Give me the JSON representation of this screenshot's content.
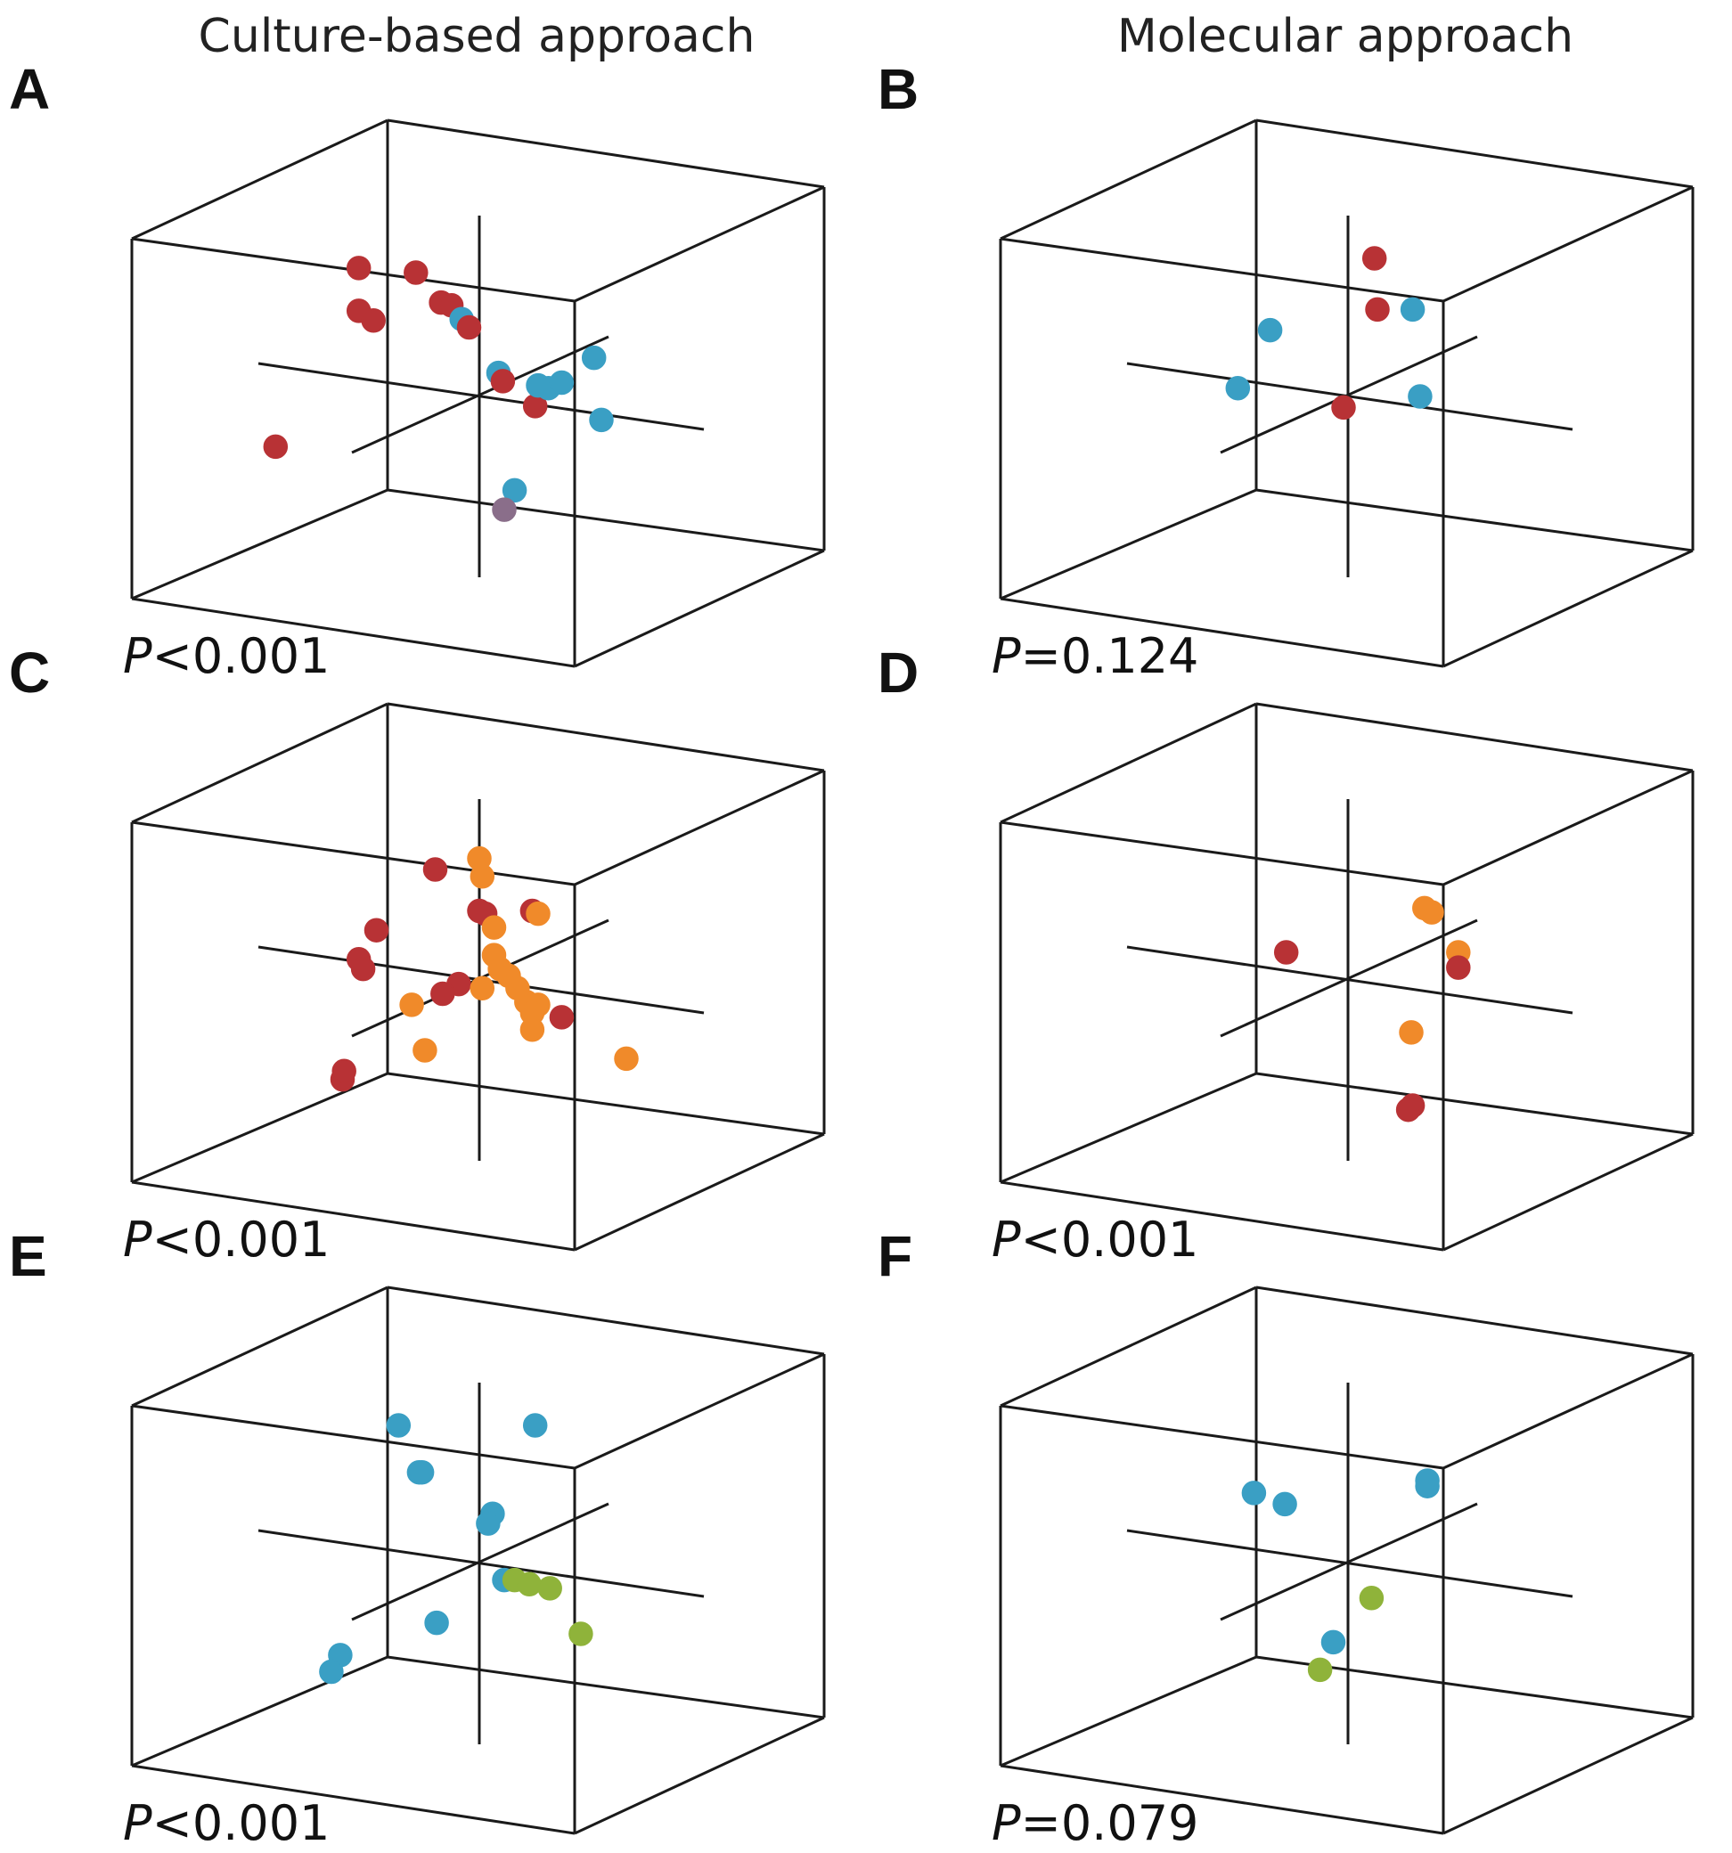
{
  "columns": [
    {
      "title": "Culture-based approach"
    },
    {
      "title": "Molecular approach"
    }
  ],
  "colors": {
    "red": "#b83235",
    "teal": "#3a9fc4",
    "orange": "#f08a2a",
    "green": "#8fb33a",
    "purple": "#8a6e8a"
  },
  "chart_data": [
    {
      "panel": "A",
      "type": "scatter",
      "p_label": "P",
      "p_rest": "<0.001",
      "points": [
        {
          "x": -0.82,
          "y": 0.93,
          "z": 0.0,
          "c": "red"
        },
        {
          "x": -0.65,
          "y": 1.0,
          "z": 0.4,
          "c": "red"
        },
        {
          "x": -0.82,
          "y": 0.62,
          "z": 0.0,
          "c": "red"
        },
        {
          "x": -0.72,
          "y": 0.55,
          "z": 0.0,
          "c": "red"
        },
        {
          "x": -0.26,
          "y": 0.68,
          "z": 0.0,
          "c": "red"
        },
        {
          "x": -0.19,
          "y": 0.66,
          "z": 0.0,
          "c": "red"
        },
        {
          "x": -0.12,
          "y": 0.56,
          "z": 0.0,
          "c": "teal"
        },
        {
          "x": -0.07,
          "y": 0.5,
          "z": 0.0,
          "c": "red"
        },
        {
          "x": 0.13,
          "y": 0.17,
          "z": 0.0,
          "c": "teal"
        },
        {
          "x": 0.16,
          "y": 0.11,
          "z": 0.0,
          "c": "red"
        },
        {
          "x": 0.38,
          "y": -0.07,
          "z": 0.0,
          "c": "red"
        },
        {
          "x": 0.4,
          "y": 0.08,
          "z": 0.0,
          "c": "teal"
        },
        {
          "x": 0.47,
          "y": 0.06,
          "z": 0.0,
          "c": "teal"
        },
        {
          "x": 0.56,
          "y": 0.1,
          "z": 0.0,
          "c": "teal"
        },
        {
          "x": 0.78,
          "y": 0.28,
          "z": 0.0,
          "c": "teal"
        },
        {
          "x": 0.83,
          "y": -0.17,
          "z": 0.0,
          "c": "teal"
        },
        {
          "x": 0.24,
          "y": -0.68,
          "z": 0.0,
          "c": "teal"
        },
        {
          "x": 0.17,
          "y": -0.82,
          "z": 0.0,
          "c": "purple"
        },
        {
          "x": -0.95,
          "y": -0.57,
          "z": -0.8,
          "c": "red"
        }
      ]
    },
    {
      "panel": "B",
      "type": "scatter",
      "p_label": "P",
      "p_rest": "=0.124",
      "points": [
        {
          "x": 0.18,
          "y": 1.0,
          "z": 0.0,
          "c": "red"
        },
        {
          "x": 0.2,
          "y": 0.63,
          "z": 0.0,
          "c": "red"
        },
        {
          "x": 0.44,
          "y": 0.63,
          "z": 0.0,
          "c": "teal"
        },
        {
          "x": -0.53,
          "y": 0.48,
          "z": 0.0,
          "c": "teal"
        },
        {
          "x": -0.75,
          "y": 0.06,
          "z": 0.0,
          "c": "teal"
        },
        {
          "x": 0.49,
          "y": 0.0,
          "z": 0.0,
          "c": "teal"
        },
        {
          "x": -0.03,
          "y": -0.08,
          "z": 0.0,
          "c": "red"
        }
      ]
    },
    {
      "panel": "C",
      "type": "scatter",
      "p_label": "P",
      "p_rest": "<0.001",
      "points": [
        {
          "x": -0.3,
          "y": 0.8,
          "z": 0.0,
          "c": "red"
        },
        {
          "x": 0.0,
          "y": 0.88,
          "z": 0.0,
          "c": "orange"
        },
        {
          "x": 0.02,
          "y": 0.75,
          "z": 0.0,
          "c": "orange"
        },
        {
          "x": 0.0,
          "y": 0.5,
          "z": 0.0,
          "c": "red"
        },
        {
          "x": 0.04,
          "y": 0.48,
          "z": 0.0,
          "c": "red"
        },
        {
          "x": 0.1,
          "y": 0.38,
          "z": 0.0,
          "c": "orange"
        },
        {
          "x": 0.36,
          "y": 0.5,
          "z": 0.0,
          "c": "red"
        },
        {
          "x": 0.4,
          "y": 0.48,
          "z": 0.0,
          "c": "orange"
        },
        {
          "x": -0.7,
          "y": 0.36,
          "z": 0.0,
          "c": "red"
        },
        {
          "x": -0.82,
          "y": 0.15,
          "z": 0.0,
          "c": "red"
        },
        {
          "x": -0.79,
          "y": 0.08,
          "z": 0.0,
          "c": "red"
        },
        {
          "x": 0.1,
          "y": 0.18,
          "z": 0.0,
          "c": "orange"
        },
        {
          "x": 0.14,
          "y": 0.08,
          "z": 0.0,
          "c": "orange"
        },
        {
          "x": 0.2,
          "y": 0.03,
          "z": 0.0,
          "c": "orange"
        },
        {
          "x": -0.14,
          "y": -0.03,
          "z": 0.0,
          "c": "red"
        },
        {
          "x": -0.25,
          "y": -0.1,
          "z": 0.0,
          "c": "red"
        },
        {
          "x": 0.02,
          "y": -0.06,
          "z": 0.0,
          "c": "orange"
        },
        {
          "x": 0.26,
          "y": -0.06,
          "z": 0.0,
          "c": "orange"
        },
        {
          "x": 0.32,
          "y": -0.16,
          "z": 0.0,
          "c": "orange"
        },
        {
          "x": 0.4,
          "y": -0.18,
          "z": 0.0,
          "c": "orange"
        },
        {
          "x": 0.36,
          "y": -0.24,
          "z": 0.0,
          "c": "orange"
        },
        {
          "x": 0.56,
          "y": -0.27,
          "z": 0.0,
          "c": "red"
        },
        {
          "x": 0.36,
          "y": -0.36,
          "z": 0.0,
          "c": "orange"
        },
        {
          "x": -0.46,
          "y": -0.18,
          "z": 0.0,
          "c": "orange"
        },
        {
          "x": -0.37,
          "y": -0.51,
          "z": 0.0,
          "c": "orange"
        },
        {
          "x": 1.0,
          "y": -0.57,
          "z": 0.0,
          "c": "orange"
        },
        {
          "x": -0.93,
          "y": -0.72,
          "z": 0.0,
          "c": "red"
        },
        {
          "x": -0.92,
          "y": -0.66,
          "z": 0.0,
          "c": "red"
        }
      ]
    },
    {
      "panel": "D",
      "type": "scatter",
      "p_label": "P",
      "p_rest": "<0.001",
      "points": [
        {
          "x": -0.42,
          "y": 0.2,
          "z": 0.0,
          "c": "red"
        },
        {
          "x": 0.52,
          "y": 0.52,
          "z": 0.0,
          "c": "orange"
        },
        {
          "x": 0.57,
          "y": 0.49,
          "z": 0.0,
          "c": "orange"
        },
        {
          "x": 0.75,
          "y": 0.2,
          "z": 0.0,
          "c": "orange"
        },
        {
          "x": 0.75,
          "y": 0.09,
          "z": 0.0,
          "c": "red"
        },
        {
          "x": 0.43,
          "y": -0.38,
          "z": 0.0,
          "c": "orange"
        },
        {
          "x": 0.44,
          "y": -0.91,
          "z": 0.0,
          "c": "red"
        },
        {
          "x": 0.41,
          "y": -0.94,
          "z": 0.0,
          "c": "red"
        }
      ]
    },
    {
      "panel": "E",
      "type": "scatter",
      "p_label": "P",
      "p_rest": "<0.001",
      "points": [
        {
          "x": -0.55,
          "y": 1.0,
          "z": 0.0,
          "c": "teal"
        },
        {
          "x": 0.38,
          "y": 1.0,
          "z": 0.0,
          "c": "teal"
        },
        {
          "x": -0.41,
          "y": 0.66,
          "z": 0.0,
          "c": "teal"
        },
        {
          "x": -0.39,
          "y": 0.66,
          "z": 0.0,
          "c": "teal"
        },
        {
          "x": 0.09,
          "y": 0.36,
          "z": 0.0,
          "c": "teal"
        },
        {
          "x": 0.06,
          "y": 0.29,
          "z": 0.0,
          "c": "teal"
        },
        {
          "x": 0.17,
          "y": -0.12,
          "z": 0.0,
          "c": "teal"
        },
        {
          "x": 0.24,
          "y": -0.12,
          "z": 0.0,
          "c": "green"
        },
        {
          "x": 0.34,
          "y": -0.15,
          "z": 0.0,
          "c": "green"
        },
        {
          "x": 0.48,
          "y": -0.18,
          "z": 0.0,
          "c": "green"
        },
        {
          "x": 0.69,
          "y": -0.51,
          "z": 0.0,
          "c": "green"
        },
        {
          "x": -0.29,
          "y": -0.43,
          "z": 0.0,
          "c": "teal"
        },
        {
          "x": -0.51,
          "y": -0.87,
          "z": -0.8,
          "c": "teal"
        },
        {
          "x": -0.57,
          "y": -0.99,
          "z": -0.8,
          "c": "teal"
        }
      ]
    },
    {
      "panel": "F",
      "type": "scatter",
      "p_label": "P",
      "p_rest": "=0.079",
      "points": [
        {
          "x": -0.64,
          "y": 0.51,
          "z": 0.0,
          "c": "teal"
        },
        {
          "x": -0.43,
          "y": 0.43,
          "z": 0.0,
          "c": "teal"
        },
        {
          "x": 0.54,
          "y": 0.56,
          "z": 0.0,
          "c": "teal"
        },
        {
          "x": 0.54,
          "y": 0.6,
          "z": 0.0,
          "c": "teal"
        },
        {
          "x": 0.16,
          "y": -0.25,
          "z": 0.0,
          "c": "green"
        },
        {
          "x": -0.1,
          "y": -0.57,
          "z": 0.0,
          "c": "teal"
        },
        {
          "x": -0.19,
          "y": -0.77,
          "z": 0.0,
          "c": "green"
        }
      ]
    }
  ]
}
